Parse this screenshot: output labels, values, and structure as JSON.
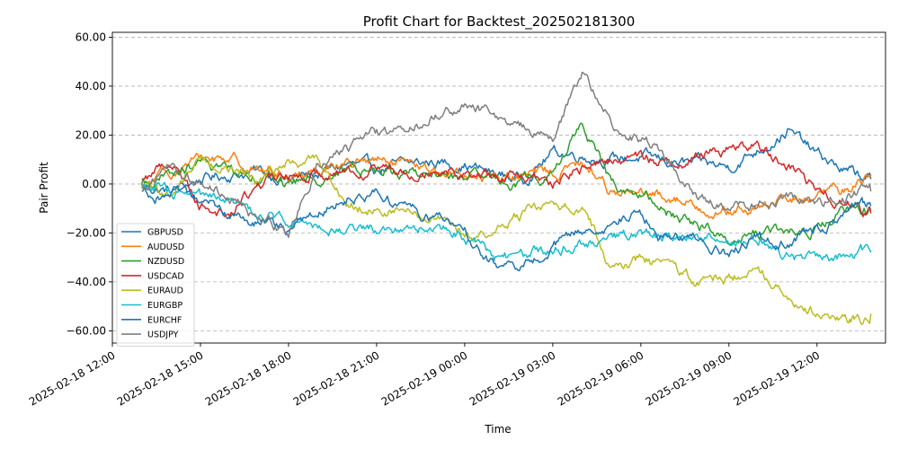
{
  "chart_data": {
    "type": "line",
    "title": "Profit Chart for Backtest_202502181300",
    "xlabel": "Time",
    "ylabel": "Pair Profit",
    "ylim": [
      -65,
      62
    ],
    "y_ticks": [
      -60,
      -40,
      -20,
      0,
      20,
      40,
      60
    ],
    "y_tick_labels": [
      "−60.00",
      "−40.00",
      "−20.00",
      "0.00",
      "20.00",
      "40.00",
      "60.00"
    ],
    "x_range": [
      "2025-02-18 12:00",
      "2025-02-19 14:20"
    ],
    "x_ticks": [
      "2025-02-18 12:00",
      "2025-02-18 15:00",
      "2025-02-18 18:00",
      "2025-02-18 21:00",
      "2025-02-19 00:00",
      "2025-02-19 03:00",
      "2025-02-19 06:00",
      "2025-02-19 09:00",
      "2025-02-19 12:00"
    ],
    "grid": "horizontal dashed",
    "legend_position": "lower-left",
    "series": [
      {
        "name": "GBPUSD",
        "color": "#1f77b4",
        "times": [
          "2025-02-18 13:00",
          "2025-02-18 14:00",
          "2025-02-18 15:00",
          "2025-02-18 16:00",
          "2025-02-18 17:00",
          "2025-02-18 18:00",
          "2025-02-18 19:00",
          "2025-02-18 20:00",
          "2025-02-18 21:00",
          "2025-02-18 22:00",
          "2025-02-18 23:00",
          "2025-02-19 00:00",
          "2025-02-19 01:00",
          "2025-02-19 02:00",
          "2025-02-19 03:00",
          "2025-02-19 04:00",
          "2025-02-19 05:00",
          "2025-02-19 06:00",
          "2025-02-19 07:00",
          "2025-02-19 08:00",
          "2025-02-19 09:00",
          "2025-02-19 10:00",
          "2025-02-19 11:00",
          "2025-02-19 12:00",
          "2025-02-19 13:00",
          "2025-02-19 13:50"
        ],
        "values": [
          -1,
          -3,
          2,
          4,
          5,
          2,
          4,
          8,
          6,
          8,
          9,
          8,
          4,
          2,
          13,
          12,
          10,
          11,
          9,
          8,
          7,
          14,
          22,
          12,
          5,
          2
        ]
      },
      {
        "name": "AUDUSD",
        "color": "#ff7f0e",
        "times": [
          "2025-02-18 13:00",
          "2025-02-18 14:00",
          "2025-02-18 15:00",
          "2025-02-18 16:00",
          "2025-02-18 17:00",
          "2025-02-18 18:00",
          "2025-02-18 19:00",
          "2025-02-18 20:00",
          "2025-02-18 21:00",
          "2025-02-18 22:00",
          "2025-02-18 23:00",
          "2025-02-19 00:00",
          "2025-02-19 01:00",
          "2025-02-19 02:00",
          "2025-02-19 03:00",
          "2025-02-19 04:00",
          "2025-02-19 05:00",
          "2025-02-19 06:00",
          "2025-02-19 07:00",
          "2025-02-19 08:00",
          "2025-02-19 09:00",
          "2025-02-19 10:00",
          "2025-02-19 11:00",
          "2025-02-19 12:00",
          "2025-02-19 13:00",
          "2025-02-19 13:50"
        ],
        "values": [
          -2,
          5,
          10,
          11,
          6,
          3,
          7,
          9,
          9,
          7,
          5,
          4,
          3,
          3,
          5,
          8,
          -2,
          -5,
          -5,
          -9,
          -12,
          -10,
          -7,
          -5,
          -2,
          4
        ]
      },
      {
        "name": "NZDUSD",
        "color": "#2ca02c",
        "times": [
          "2025-02-18 13:00",
          "2025-02-18 14:00",
          "2025-02-18 15:00",
          "2025-02-18 16:00",
          "2025-02-18 17:00",
          "2025-02-18 18:00",
          "2025-02-18 19:00",
          "2025-02-18 20:00",
          "2025-02-18 21:00",
          "2025-02-18 22:00",
          "2025-02-18 23:00",
          "2025-02-19 00:00",
          "2025-02-19 01:00",
          "2025-02-19 02:00",
          "2025-02-19 03:00",
          "2025-02-19 04:00",
          "2025-02-19 05:00",
          "2025-02-19 06:00",
          "2025-02-19 07:00",
          "2025-02-19 08:00",
          "2025-02-19 09:00",
          "2025-02-19 10:00",
          "2025-02-19 11:00",
          "2025-02-19 12:00",
          "2025-02-19 13:00",
          "2025-02-19 13:50"
        ],
        "values": [
          0,
          3,
          8,
          6,
          4,
          0,
          3,
          5,
          6,
          5,
          4,
          2,
          1,
          1,
          3,
          26,
          0,
          -5,
          -12,
          -17,
          -22,
          -20,
          -20,
          -18,
          -12,
          -10
        ]
      },
      {
        "name": "USDCAD",
        "color": "#d62728",
        "times": [
          "2025-02-18 13:00",
          "2025-02-18 14:00",
          "2025-02-18 15:00",
          "2025-02-18 16:00",
          "2025-02-18 17:00",
          "2025-02-18 18:00",
          "2025-02-18 19:00",
          "2025-02-18 20:00",
          "2025-02-18 21:00",
          "2025-02-18 22:00",
          "2025-02-18 23:00",
          "2025-02-19 00:00",
          "2025-02-19 01:00",
          "2025-02-19 02:00",
          "2025-02-19 03:00",
          "2025-02-19 04:00",
          "2025-02-19 05:00",
          "2025-02-19 06:00",
          "2025-02-19 07:00",
          "2025-02-19 08:00",
          "2025-02-19 09:00",
          "2025-02-19 10:00",
          "2025-02-19 11:00",
          "2025-02-19 12:00",
          "2025-02-19 13:00",
          "2025-02-19 13:50"
        ],
        "values": [
          2,
          10,
          -8,
          -12,
          0,
          3,
          5,
          6,
          7,
          6,
          7,
          5,
          3,
          2,
          0,
          6,
          10,
          11,
          8,
          12,
          15,
          15,
          8,
          -2,
          -8,
          -12
        ]
      },
      {
        "name": "EURAUD",
        "color": "#bcbd22",
        "times": [
          "2025-02-18 13:00",
          "2025-02-18 14:00",
          "2025-02-18 15:00",
          "2025-02-18 16:00",
          "2025-02-18 17:00",
          "2025-02-18 18:00",
          "2025-02-18 19:00",
          "2025-02-18 20:00",
          "2025-02-18 21:00",
          "2025-02-18 22:00",
          "2025-02-18 23:00",
          "2025-02-19 00:00",
          "2025-02-19 01:00",
          "2025-02-19 02:00",
          "2025-02-19 03:00",
          "2025-02-19 04:00",
          "2025-02-19 05:00",
          "2025-02-19 06:00",
          "2025-02-19 07:00",
          "2025-02-19 08:00",
          "2025-02-19 09:00",
          "2025-02-19 10:00",
          "2025-02-19 11:00",
          "2025-02-19 12:00",
          "2025-02-19 13:00",
          "2025-02-19 13:50"
        ],
        "values": [
          -2,
          -4,
          10,
          6,
          2,
          8,
          10,
          -8,
          -10,
          -12,
          -14,
          -22,
          -20,
          -12,
          -10,
          -8,
          -35,
          -30,
          -35,
          -40,
          -38,
          -35,
          -45,
          -52,
          -57,
          -53
        ]
      },
      {
        "name": "EURGBP",
        "color": "#17becf",
        "times": [
          "2025-02-18 13:00",
          "2025-02-18 14:00",
          "2025-02-18 15:00",
          "2025-02-18 16:00",
          "2025-02-18 17:00",
          "2025-02-18 18:00",
          "2025-02-18 19:00",
          "2025-02-18 20:00",
          "2025-02-18 21:00",
          "2025-02-18 22:00",
          "2025-02-18 23:00",
          "2025-02-19 00:00",
          "2025-02-19 01:00",
          "2025-02-19 02:00",
          "2025-02-19 03:00",
          "2025-02-19 04:00",
          "2025-02-19 05:00",
          "2025-02-19 06:00",
          "2025-02-19 07:00",
          "2025-02-19 08:00",
          "2025-02-19 09:00",
          "2025-02-19 10:00",
          "2025-02-19 11:00",
          "2025-02-19 12:00",
          "2025-02-19 13:00",
          "2025-02-19 13:50"
        ],
        "values": [
          0,
          -4,
          -6,
          -9,
          -12,
          -14,
          -16,
          -19,
          -18,
          -17,
          -18,
          -21,
          -30,
          -30,
          -26,
          -24,
          -22,
          -21,
          -21,
          -22,
          -24,
          -22,
          -30,
          -30,
          -30,
          -28
        ]
      },
      {
        "name": "EURCHF",
        "color": "#1f77b4",
        "times": [
          "2025-02-18 13:00",
          "2025-02-18 14:00",
          "2025-02-18 15:00",
          "2025-02-18 16:00",
          "2025-02-18 17:00",
          "2025-02-18 18:00",
          "2025-02-18 19:00",
          "2025-02-18 20:00",
          "2025-02-18 21:00",
          "2025-02-18 22:00",
          "2025-02-18 23:00",
          "2025-02-19 00:00",
          "2025-02-19 01:00",
          "2025-02-19 02:00",
          "2025-02-19 03:00",
          "2025-02-19 04:00",
          "2025-02-19 05:00",
          "2025-02-19 06:00",
          "2025-02-19 07:00",
          "2025-02-19 08:00",
          "2025-02-19 09:00",
          "2025-02-19 10:00",
          "2025-02-19 11:00",
          "2025-02-19 12:00",
          "2025-02-19 13:00",
          "2025-02-19 13:50"
        ],
        "values": [
          -3,
          -5,
          -8,
          -12,
          -16,
          -20,
          -10,
          -5,
          -3,
          -10,
          -14,
          -20,
          -33,
          -35,
          -25,
          -20,
          -15,
          -12,
          -25,
          -22,
          -30,
          -22,
          -24,
          -20,
          -12,
          -9
        ]
      },
      {
        "name": "USDJPY",
        "color": "#7f7f7f",
        "times": [
          "2025-02-18 13:00",
          "2025-02-18 14:00",
          "2025-02-18 15:00",
          "2025-02-18 16:00",
          "2025-02-18 17:00",
          "2025-02-18 18:00",
          "2025-02-18 19:00",
          "2025-02-18 20:00",
          "2025-02-18 21:00",
          "2025-02-18 22:00",
          "2025-02-18 23:00",
          "2025-02-19 00:00",
          "2025-02-19 01:00",
          "2025-02-19 02:00",
          "2025-02-19 03:00",
          "2025-02-19 04:00",
          "2025-02-19 05:00",
          "2025-02-19 06:00",
          "2025-02-19 07:00",
          "2025-02-19 08:00",
          "2025-02-19 09:00",
          "2025-02-19 10:00",
          "2025-02-19 11:00",
          "2025-02-19 12:00",
          "2025-02-19 13:00",
          "2025-02-19 13:50"
        ],
        "values": [
          0,
          8,
          0,
          -5,
          -15,
          -20,
          10,
          15,
          20,
          22,
          28,
          32,
          28,
          22,
          20,
          45,
          25,
          18,
          10,
          -5,
          -12,
          -8,
          -5,
          -10,
          -5,
          -3
        ]
      }
    ]
  }
}
